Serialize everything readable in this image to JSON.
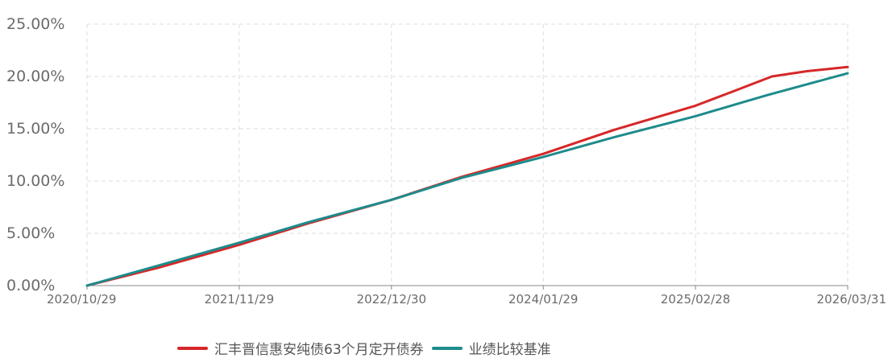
{
  "chart_data": {
    "type": "line",
    "title": "",
    "xlabel": "",
    "ylabel": "",
    "x_tick_labels": [
      "2020/10/29",
      "2021/11/29",
      "2022/12/30",
      "2024/01/29",
      "2025/02/28",
      "2026/03/31"
    ],
    "y_tick_labels": [
      "0.00%",
      "5.00%",
      "10.00%",
      "15.00%",
      "20.00%",
      "25.00%"
    ],
    "y_ticks": [
      0,
      5,
      10,
      15,
      20,
      25
    ],
    "ylim": [
      0,
      25
    ],
    "xlim": [
      "2020-10-29",
      "2026-03-31"
    ],
    "grid": true,
    "legend_position": "bottom",
    "series": [
      {
        "name": "汇丰晋信惠安纯债63个月定开债券",
        "color": "#d62728",
        "points": [
          [
            "2020-10-29",
            0.0
          ],
          [
            "2021-05-01",
            1.7
          ],
          [
            "2021-11-29",
            3.9
          ],
          [
            "2022-06-01",
            6.0
          ],
          [
            "2022-12-30",
            8.2
          ],
          [
            "2023-07-01",
            10.4
          ],
          [
            "2024-01-29",
            12.6
          ],
          [
            "2024-08-01",
            14.9
          ],
          [
            "2025-02-28",
            17.2
          ],
          [
            "2025-06-01",
            18.5
          ],
          [
            "2025-09-15",
            20.0
          ],
          [
            "2025-12-15",
            20.5
          ],
          [
            "2026-03-31",
            20.9
          ]
        ]
      },
      {
        "name": "业绩比较基准",
        "color": "#1e8b8b",
        "points": [
          [
            "2020-10-29",
            0.0
          ],
          [
            "2021-05-01",
            1.9
          ],
          [
            "2021-11-29",
            4.1
          ],
          [
            "2022-06-01",
            6.1
          ],
          [
            "2022-12-30",
            8.2
          ],
          [
            "2023-07-01",
            10.3
          ],
          [
            "2024-01-29",
            12.3
          ],
          [
            "2024-08-01",
            14.2
          ],
          [
            "2025-02-28",
            16.2
          ],
          [
            "2025-09-01",
            18.2
          ],
          [
            "2026-03-31",
            20.3
          ]
        ]
      }
    ]
  }
}
